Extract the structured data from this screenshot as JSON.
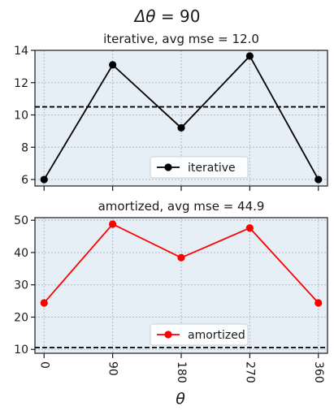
{
  "figure": {
    "suptitle_text": "Δθ = 90",
    "xlabel_text": "θ"
  },
  "chart_data": [
    {
      "type": "line",
      "title": "iterative, avg mse = 12.0",
      "x": [
        0,
        90,
        180,
        270,
        360
      ],
      "series": [
        {
          "name": "iterative",
          "values": [
            6.0,
            13.1,
            9.2,
            13.65,
            6.0
          ],
          "color": "#000000"
        }
      ],
      "hline": 10.5,
      "ylim": [
        5.6,
        14.0
      ],
      "xlim": [
        -12,
        372
      ],
      "yticks": [
        6,
        8,
        10,
        12,
        14
      ],
      "xticks": [
        0,
        90,
        180,
        270,
        360
      ],
      "show_xticklabels": false,
      "grid": true,
      "legend_position": "lower center",
      "background": "#e6eef6"
    },
    {
      "type": "line",
      "title": "amortized, avg mse = 44.9",
      "x": [
        0,
        90,
        180,
        270,
        360
      ],
      "series": [
        {
          "name": "amortized",
          "values": [
            24.4,
            48.8,
            38.4,
            47.6,
            24.4
          ],
          "color": "#ff0000"
        }
      ],
      "hline": 10.6,
      "ylim": [
        8.8,
        50.8
      ],
      "xlim": [
        -12,
        372
      ],
      "yticks": [
        10,
        20,
        30,
        40,
        50
      ],
      "xticks": [
        0,
        90,
        180,
        270,
        360
      ],
      "xticklabels": [
        "0",
        "90",
        "180",
        "270",
        "360"
      ],
      "show_xticklabels": true,
      "grid": true,
      "legend_position": "lower center",
      "background": "#e6eef6"
    }
  ]
}
